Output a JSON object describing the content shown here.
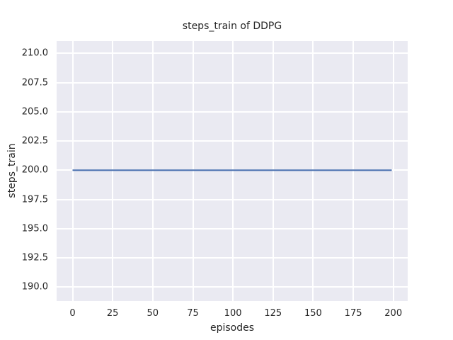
{
  "chart_data": {
    "type": "line",
    "title": "steps_train of DDPG",
    "xlabel": "episodes",
    "ylabel": "steps_train",
    "x_ticks": [
      0,
      25,
      50,
      75,
      100,
      125,
      150,
      175,
      200
    ],
    "y_ticks": [
      "190.0",
      "192.5",
      "195.0",
      "197.5",
      "200.0",
      "202.5",
      "205.0",
      "207.5",
      "210.0"
    ],
    "xlim": [
      -9.95,
      208.95
    ],
    "ylim": [
      188.8,
      211.05
    ],
    "series": [
      {
        "name": "steps_train",
        "color": "#4c72b0",
        "x": [
          0,
          199
        ],
        "y": [
          200,
          200
        ]
      }
    ],
    "grid": "on",
    "legend": "none",
    "plot_bg_color": "#eaeaf2",
    "grid_color": "#ffffff",
    "text_color": "#262626"
  }
}
